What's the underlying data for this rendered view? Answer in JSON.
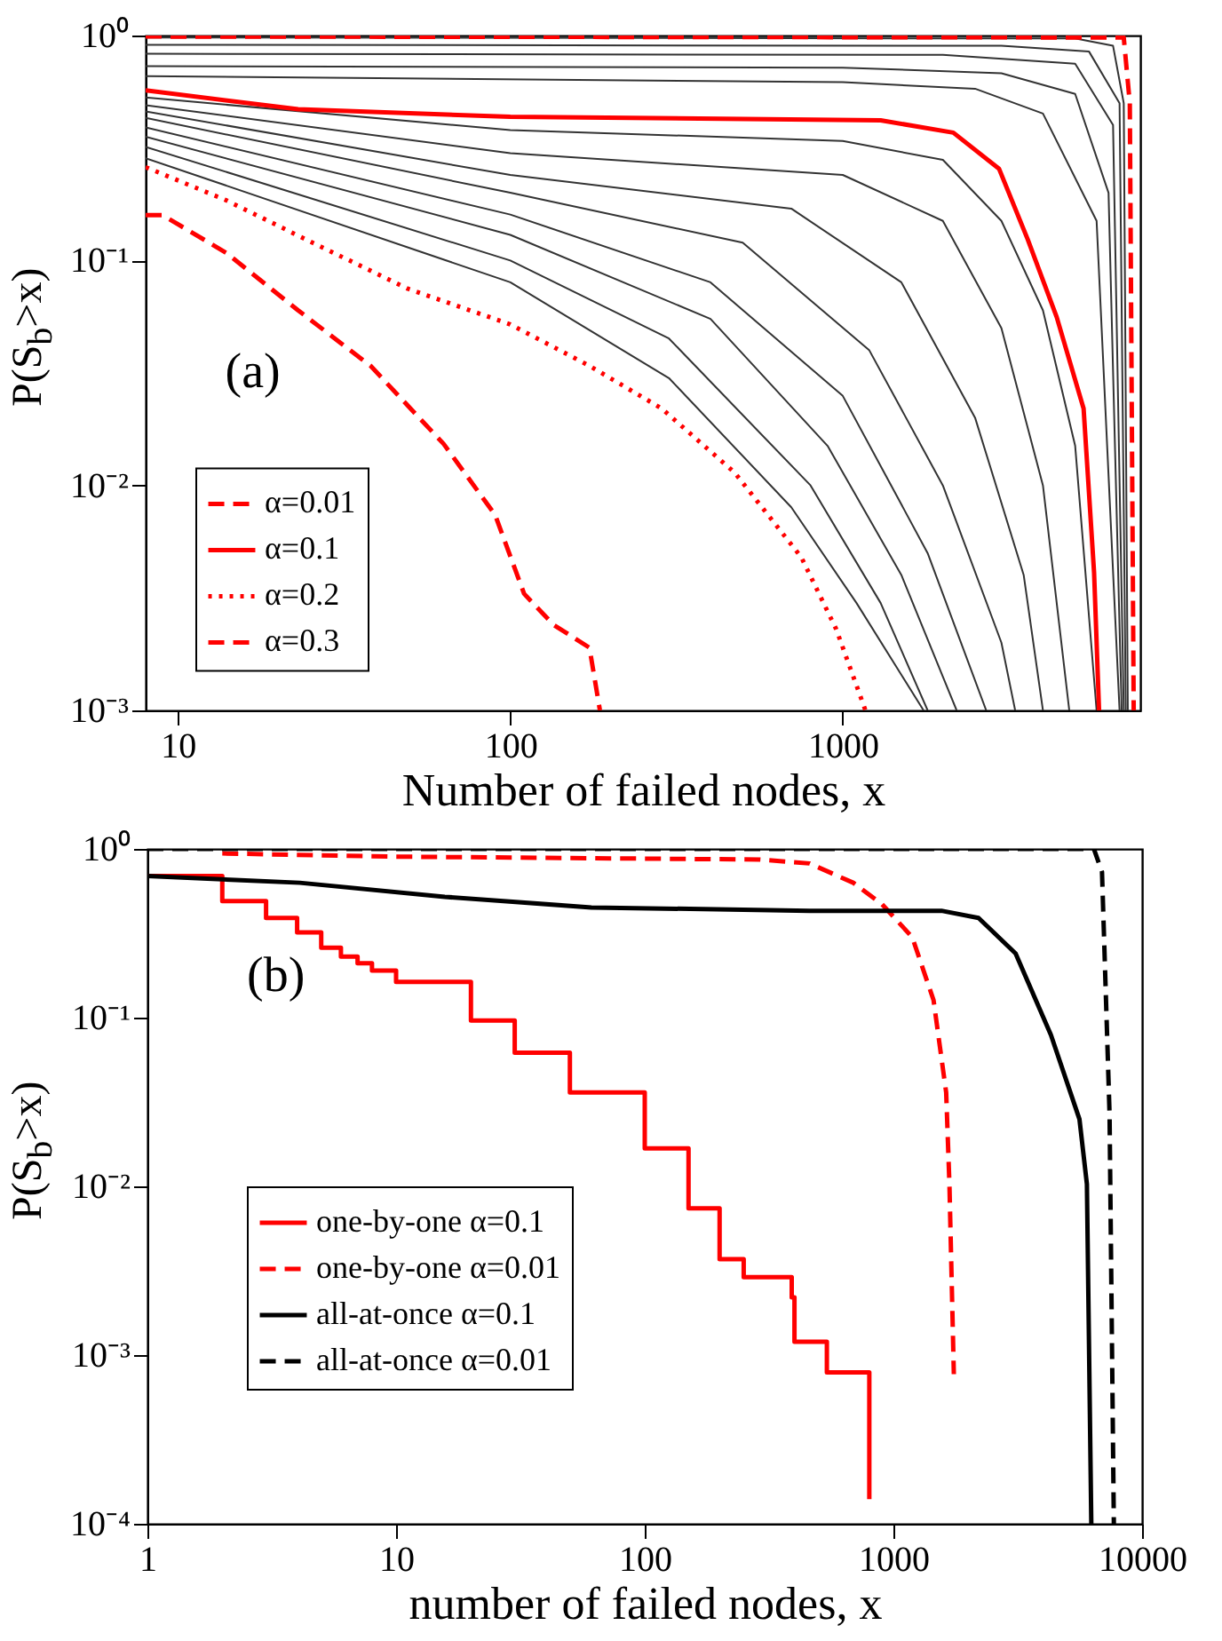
{
  "chart_data": [
    {
      "type": "line",
      "xlabel": "Number of failed nodes, x",
      "ylabel": "P(S$_{b}$>x)",
      "log": "xy",
      "grid": false,
      "legend": "bottom left",
      "annotations": [
        "(a)"
      ],
      "xlim": [
        8,
        7850
      ],
      "xticks": [
        10,
        100,
        1000
      ],
      "ylim": [
        0.001,
        1
      ],
      "yticks": [
        {
          "value": 1,
          "label": "10⁰"
        },
        {
          "value": 0.1,
          "label": "10⁻¹"
        },
        {
          "value": 0.01,
          "label": "10⁻²"
        },
        {
          "value": 0.001,
          "label": "10⁻³"
        }
      ],
      "series": [
        {
          "color": "#333333",
          "x": [
            8,
            5000,
            6500,
            7000,
            7200
          ],
          "values": [
            0.98,
            0.97,
            0.9,
            0.5,
            0.001
          ]
        },
        {
          "color": "#333333",
          "x": [
            8,
            3000,
            5500,
            6800,
            7100
          ],
          "values": [
            0.91,
            0.9,
            0.85,
            0.5,
            0.001
          ]
        },
        {
          "color": "#333333",
          "x": [
            8,
            2000,
            5000,
            6500,
            7000
          ],
          "values": [
            0.83,
            0.82,
            0.75,
            0.4,
            0.001
          ]
        },
        {
          "color": "#333333",
          "x": [
            8,
            1000,
            3000,
            5000,
            6300,
            6900
          ],
          "values": [
            0.73,
            0.72,
            0.68,
            0.55,
            0.2,
            0.001
          ]
        },
        {
          "color": "#333333",
          "x": [
            8,
            1000,
            2500,
            4000,
            5800,
            6800
          ],
          "values": [
            0.66,
            0.62,
            0.58,
            0.45,
            0.15,
            0.001
          ]
        },
        {
          "color": "#333333",
          "x": [
            8,
            100,
            1000,
            2000,
            3000,
            4000,
            5000,
            5800
          ],
          "values": [
            0.53,
            0.38,
            0.34,
            0.28,
            0.15,
            0.06,
            0.015,
            0.001
          ]
        },
        {
          "color": "#333333",
          "x": [
            8,
            100,
            1000,
            2000,
            3000,
            4000,
            4800
          ],
          "values": [
            0.49,
            0.3,
            0.24,
            0.15,
            0.05,
            0.01,
            0.001
          ]
        },
        {
          "color": "#333333",
          "x": [
            8,
            100,
            700,
            1500,
            2500,
            3500,
            4000
          ],
          "values": [
            0.46,
            0.24,
            0.17,
            0.08,
            0.02,
            0.004,
            0.001
          ]
        },
        {
          "color": "#333333",
          "x": [
            8,
            100,
            500,
            1200,
            2000,
            3000,
            3300
          ],
          "values": [
            0.43,
            0.2,
            0.12,
            0.04,
            0.01,
            0.002,
            0.001
          ]
        },
        {
          "color": "#333333",
          "x": [
            8,
            100,
            400,
            1000,
            1800,
            2700
          ],
          "values": [
            0.39,
            0.16,
            0.08,
            0.025,
            0.005,
            0.001
          ]
        },
        {
          "color": "#333333",
          "x": [
            8,
            100,
            400,
            900,
            1500,
            2200
          ],
          "values": [
            0.355,
            0.13,
            0.055,
            0.015,
            0.004,
            0.001
          ]
        },
        {
          "color": "#333333",
          "x": [
            8,
            100,
            300,
            800,
            1300,
            1800
          ],
          "values": [
            0.32,
            0.1,
            0.045,
            0.01,
            0.003,
            0.001
          ]
        },
        {
          "color": "#333333",
          "x": [
            8,
            100,
            300,
            700,
            1100,
            1750
          ],
          "values": [
            0.285,
            0.08,
            0.03,
            0.008,
            0.003,
            0.001
          ]
        },
        {
          "name": "α=0.01",
          "color": "#ff0000",
          "line_style": "dashed",
          "x": [
            8,
            7000,
            7300,
            7500
          ],
          "values": [
            0.99,
            0.98,
            0.5,
            0.001
          ]
        },
        {
          "name": "α=0.1",
          "color": "#ff0000",
          "line_style": "solid",
          "x": [
            8,
            23,
            100,
            1300,
            2150,
            2950,
            3600,
            4400,
            5300,
            5700,
            5900
          ],
          "values": [
            0.57,
            0.47,
            0.435,
            0.42,
            0.37,
            0.256,
            0.124,
            0.056,
            0.022,
            0.0041,
            0.001
          ]
        },
        {
          "name": "α=0.2",
          "color": "#ff0000",
          "line_style": "dotted",
          "x": [
            8,
            14,
            23,
            49,
            100,
            173,
            285,
            473,
            750,
            955,
            1170
          ],
          "values": [
            0.26,
            0.185,
            0.129,
            0.075,
            0.052,
            0.034,
            0.022,
            0.0114,
            0.0048,
            0.0023,
            0.001
          ]
        },
        {
          "name": "α=0.3",
          "color": "#ff0000",
          "line_style": "dashed",
          "x": [
            8,
            9,
            14,
            23,
            38,
            63,
            90,
            110,
            135,
            173,
            186
          ],
          "values": [
            0.159,
            0.159,
            0.108,
            0.06,
            0.034,
            0.0153,
            0.0074,
            0.0033,
            0.0024,
            0.0019,
            0.001
          ]
        }
      ]
    },
    {
      "type": "line",
      "xlabel": "number of failed nodes, x",
      "ylabel": "P(S$_{b}$>x)",
      "log": "xy",
      "grid": false,
      "legend": "left",
      "annotations": [
        "(b)"
      ],
      "xlim": [
        1,
        10000
      ],
      "xticks": [
        1,
        10,
        100,
        1000,
        10000
      ],
      "ylim": [
        0.0001,
        1
      ],
      "yticks": [
        {
          "value": 1,
          "label": "10⁰"
        },
        {
          "value": 0.1,
          "label": "10⁻¹"
        },
        {
          "value": 0.01,
          "label": "10⁻²"
        },
        {
          "value": 0.001,
          "label": "10⁻³"
        },
        {
          "value": 0.0001,
          "label": "10⁻⁴"
        }
      ],
      "series": [
        {
          "name": "one-by-one α=0.1",
          "type": "step",
          "color": "#ff0000",
          "line_style": "solid",
          "x": [
            1,
            2,
            3,
            4,
            5,
            6,
            7,
            8,
            10,
            20,
            30,
            50,
            100,
            150,
            200,
            250,
            390,
            400,
            540,
            800,
            800
          ],
          "values": [
            0.69,
            0.49,
            0.39,
            0.32,
            0.26,
            0.23,
            0.21,
            0.19,
            0.163,
            0.096,
            0.062,
            0.036,
            0.0168,
            0.0074,
            0.0037,
            0.0029,
            0.0022,
            0.0012,
            0.00079,
            0.00068,
            0.00014
          ]
        },
        {
          "name": "one-by-one α=0.01",
          "color": "#ff0000",
          "line_style": "dashed",
          "x": [
            2,
            10,
            290,
            460,
            690,
            900,
            1190,
            1450,
            1630,
            1680,
            1750
          ],
          "values": [
            0.94,
            0.9,
            0.865,
            0.82,
            0.63,
            0.47,
            0.3,
            0.127,
            0.036,
            0.0103,
            0.00077
          ]
        },
        {
          "name": "all-at-once α=0.1",
          "color": "#000000",
          "line_style": "solid",
          "x": [
            1,
            4.1,
            15.7,
            61,
            460,
            1560,
            2200,
            3100,
            4300,
            5600,
            6000,
            6250
          ],
          "values": [
            0.69,
            0.63,
            0.52,
            0.45,
            0.43,
            0.43,
            0.39,
            0.24,
            0.079,
            0.025,
            0.0103,
            0.0001
          ]
        },
        {
          "name": "all-at-once α=0.01",
          "color": "#000000",
          "line_style": "dashed",
          "x": [
            1,
            6400,
            6900,
            7400,
            7700
          ],
          "values": [
            1,
            1,
            0.73,
            0.027,
            0.0001
          ]
        }
      ]
    }
  ]
}
